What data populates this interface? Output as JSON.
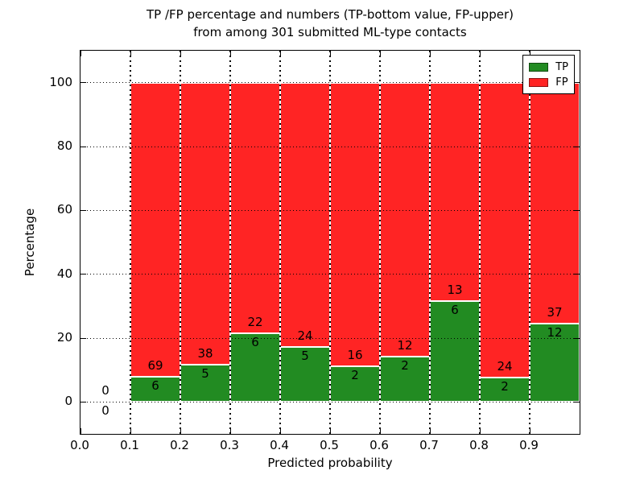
{
  "title": {
    "line1": "TP /FP percentage and numbers (TP-bottom value, FP-upper)",
    "line2": "from among 301 submitted ML-type contacts"
  },
  "axes": {
    "x_label": "Predicted probability",
    "y_label": "Percentage",
    "x_ticks": [
      "0.0",
      "0.1",
      "0.2",
      "0.3",
      "0.4",
      "0.5",
      "0.6",
      "0.7",
      "0.8",
      "0.9"
    ],
    "y_ticks": [
      "0",
      "20",
      "40",
      "60",
      "80",
      "100"
    ]
  },
  "legend": {
    "items": [
      {
        "label": "TP",
        "color": "#228b22"
      },
      {
        "label": "FP",
        "color": "#ff2424"
      }
    ]
  },
  "chart_data": {
    "type": "bar",
    "stacked": true,
    "normalized_to_percent": true,
    "title": "TP /FP percentage and numbers (TP-bottom value, FP-upper) from among 301 submitted ML-type contacts",
    "xlabel": "Predicted probability",
    "ylabel": "Percentage",
    "xlim": [
      0.0,
      1.0
    ],
    "ylim": [
      -10,
      110
    ],
    "grid": true,
    "legend_position": "upper right",
    "total_contacts": 301,
    "colors": {
      "tp": "#228b22",
      "fp": "#ff2424"
    },
    "bins": [
      {
        "x0": 0.0,
        "x1": 0.1,
        "tp": 0,
        "fp": 0
      },
      {
        "x0": 0.1,
        "x1": 0.2,
        "tp": 6,
        "fp": 69
      },
      {
        "x0": 0.2,
        "x1": 0.3,
        "tp": 5,
        "fp": 38
      },
      {
        "x0": 0.3,
        "x1": 0.4,
        "tp": 6,
        "fp": 22
      },
      {
        "x0": 0.4,
        "x1": 0.5,
        "tp": 5,
        "fp": 24
      },
      {
        "x0": 0.5,
        "x1": 0.6,
        "tp": 2,
        "fp": 16
      },
      {
        "x0": 0.6,
        "x1": 0.7,
        "tp": 2,
        "fp": 12
      },
      {
        "x0": 0.7,
        "x1": 0.8,
        "tp": 6,
        "fp": 13
      },
      {
        "x0": 0.8,
        "x1": 0.9,
        "tp": 2,
        "fp": 24
      },
      {
        "x0": 0.9,
        "x1": 1.0,
        "tp": 12,
        "fp": 37
      }
    ],
    "series": [
      {
        "name": "TP",
        "color": "#228b22",
        "counts": [
          0,
          6,
          5,
          6,
          5,
          2,
          2,
          6,
          2,
          12
        ]
      },
      {
        "name": "FP",
        "color": "#ff2424",
        "counts": [
          0,
          69,
          38,
          22,
          24,
          16,
          12,
          13,
          24,
          37
        ]
      }
    ]
  }
}
